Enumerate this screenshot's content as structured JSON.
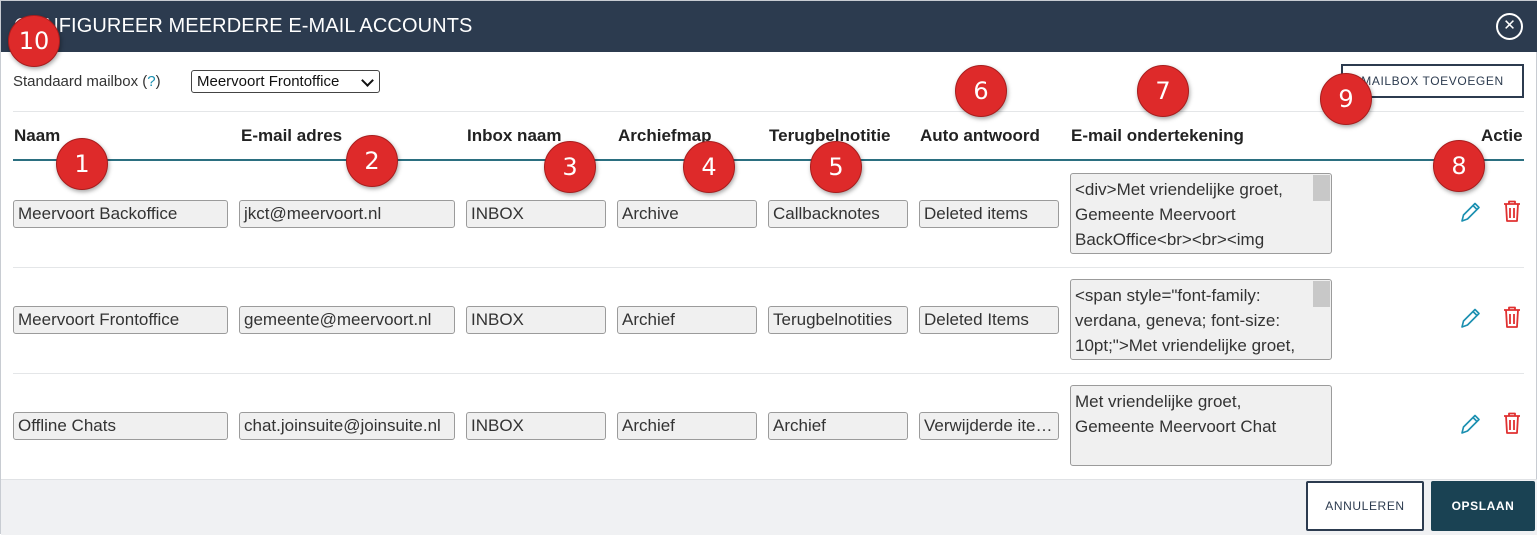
{
  "dialog": {
    "title": "CONFIGUREER MEERDERE E-MAIL ACCOUNTS",
    "close_icon": "close-icon"
  },
  "default_mailbox": {
    "label": "Standaard mailbox (",
    "help": "?",
    "label_end": ")",
    "selected": "Meervoort Frontoffice"
  },
  "add_mailbox_label": "MAILBOX TOEVOEGEN",
  "columns": [
    "Naam",
    "E-mail adres",
    "Inbox naam",
    "Archiefmap",
    "Terugbelnotitie",
    "Auto antwoord",
    "E-mail ondertekening",
    "Actie"
  ],
  "rows": [
    {
      "name": "Meervoort Backoffice",
      "email": "jkct@meervoort.nl",
      "inbox": "INBOX",
      "archive": "Archive",
      "callback": "Callbacknotes",
      "auto_reply": "Deleted items",
      "signature": "<div>Met vriendelijke groet, Gemeente Meervoort BackOffice<br><br><img"
    },
    {
      "name": "Meervoort Frontoffice",
      "email": "gemeente@meervoort.nl",
      "inbox": "INBOX",
      "archive": "Archief",
      "callback": "Terugbelnotities",
      "auto_reply": "Deleted Items",
      "signature": "<span style=\"font-family: verdana, geneva; font-size: 10pt;\">Met vriendelijke groet,"
    },
    {
      "name": "Offline Chats",
      "email": "chat.joinsuite@joinsuite.nl",
      "inbox": "INBOX",
      "archive": "Archief",
      "callback": "Archief",
      "auto_reply": "Verwijderde items",
      "signature": "Met vriendelijke groet,\nGemeente Meervoort Chat"
    }
  ],
  "footer": {
    "cancel_label": "ANNULEREN",
    "save_label": "OPSLAAN"
  },
  "markers": [
    "1",
    "2",
    "3",
    "4",
    "5",
    "6",
    "7",
    "8",
    "9",
    "10"
  ],
  "colors": {
    "header_bg": "#2c3b4f",
    "accent_teal": "#1a8fb0",
    "delete_red": "#e03030",
    "marker_red": "#de2a2a",
    "save_bg": "#1a4253"
  }
}
